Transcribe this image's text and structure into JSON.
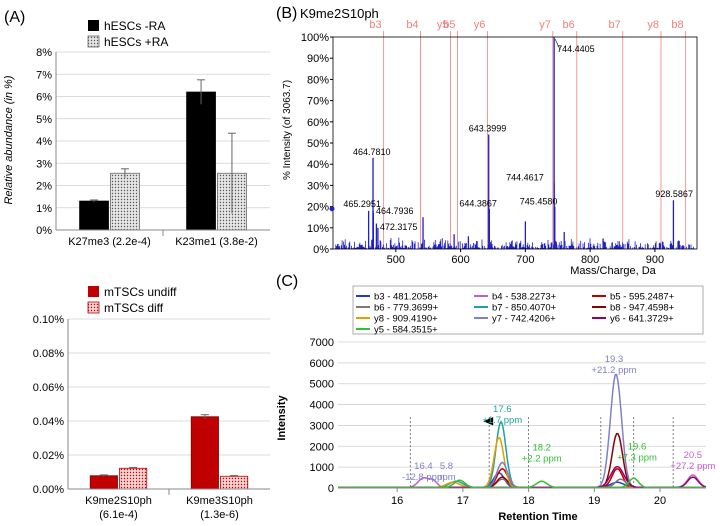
{
  "panels": {
    "a": "(A)",
    "b": "(B)",
    "c": "(C)"
  },
  "colors": {
    "black": "#000000",
    "dotted_gray": "#c8c8c8",
    "red": "#c00000",
    "pink": "#f4a6a6",
    "blue": "#1f1fcc",
    "salmon": "#f08080",
    "gridline": "#d0d0d0"
  },
  "chart_data": [
    {
      "id": "a-top",
      "type": "bar",
      "ylabel": "Relative abundance (in %)",
      "ylim": [
        0,
        8
      ],
      "yticks": [
        "0%",
        "1%",
        "2%",
        "3%",
        "4%",
        "5%",
        "6%",
        "7%",
        "8%"
      ],
      "categories": [
        "K27me3 (2.2e-4)",
        "K23me1 (3.8e-2)"
      ],
      "series": [
        {
          "name": "hESCs -RA",
          "values": [
            1.3,
            6.2
          ],
          "errors": [
            0.05,
            0.55
          ]
        },
        {
          "name": "hESCs +RA",
          "values": [
            2.55,
            2.55
          ],
          "errors": [
            0.2,
            1.8
          ]
        }
      ],
      "legend": "top-left"
    },
    {
      "id": "a-bottom",
      "type": "bar",
      "ylim": [
        0,
        0.1
      ],
      "yticks": [
        "0.00%",
        "0.02%",
        "0.04%",
        "0.06%",
        "0.08%",
        "0.10%"
      ],
      "categories": [
        [
          "K9me2S10ph",
          "(6.1e-4)"
        ],
        [
          "K9me3S10ph",
          "(1.3e-6)"
        ]
      ],
      "series": [
        {
          "name": "mTSCs undiff",
          "values": [
            0.0078,
            0.0425
          ],
          "errors": [
            0.0005,
            0.0012
          ]
        },
        {
          "name": "mTSCs diff",
          "values": [
            0.0122,
            0.0075
          ],
          "errors": [
            0.0005,
            0.0004
          ]
        }
      ],
      "legend": "top-left"
    },
    {
      "id": "b",
      "type": "line",
      "title": "K9me2S10ph",
      "xlabel": "Mass/Charge, Da",
      "ylabel": "% Intensity (of 3063.7)",
      "xlim": [
        403,
        965
      ],
      "ylim": [
        0,
        100
      ],
      "xticks": [
        "500",
        "600",
        "700",
        "800",
        "900"
      ],
      "yticks": [
        "0%",
        "10%",
        "20%",
        "30%",
        "40%",
        "50%",
        "60%",
        "70%",
        "80%",
        "90%",
        "100%"
      ],
      "fragment_labels": [
        {
          "label": "b3",
          "mz": 481.2
        },
        {
          "label": "b4",
          "mz": 538.2
        },
        {
          "label": "y5",
          "mz": 584.4
        },
        {
          "label": "b5",
          "mz": 595.2
        },
        {
          "label": "y6",
          "mz": 641.4
        },
        {
          "label": "y7",
          "mz": 742.4
        },
        {
          "label": "b6",
          "mz": 779.4
        },
        {
          "label": "b7",
          "mz": 850.4
        },
        {
          "label": "y8",
          "mz": 909.4
        },
        {
          "label": "b8",
          "mz": 947.5
        }
      ],
      "peaks": [
        {
          "mz": 464.781,
          "i": 43,
          "label": "464.7810"
        },
        {
          "mz": 465.2951,
          "i": 17,
          "label": "465.2951"
        },
        {
          "mz": 464.7936,
          "i": 18,
          "label": "464.7936"
        },
        {
          "mz": 472.3175,
          "i": 10,
          "label": "472.3175"
        },
        {
          "mz": 643.3999,
          "i": 54,
          "label": "643.3999"
        },
        {
          "mz": 644.3867,
          "i": 19,
          "label": "644.3867"
        },
        {
          "mz": 744.4405,
          "i": 100,
          "label": "744.4405"
        },
        {
          "mz": 744.4617,
          "i": 31,
          "label": "744.4617"
        },
        {
          "mz": 745.458,
          "i": 20,
          "label": "745.4580"
        },
        {
          "mz": 928.5867,
          "i": 23,
          "label": "928.5867"
        },
        {
          "mz": 458,
          "i": 18
        },
        {
          "mz": 470,
          "i": 12
        },
        {
          "mz": 476,
          "i": 4
        },
        {
          "mz": 542,
          "i": 15
        },
        {
          "mz": 590,
          "i": 7
        },
        {
          "mz": 612,
          "i": 6
        },
        {
          "mz": 700,
          "i": 13
        },
        {
          "mz": 760,
          "i": 8
        },
        {
          "mz": 820,
          "i": 5
        }
      ]
    },
    {
      "id": "c",
      "type": "line",
      "xlabel": "Retention Time",
      "ylabel": "Intensity",
      "xlim": [
        15.1,
        20.7
      ],
      "ylim": [
        0,
        7000
      ],
      "xticks": [
        "16",
        "17",
        "18",
        "19",
        "20"
      ],
      "yticks": [
        "0",
        "1000",
        "2000",
        "3000",
        "4000",
        "5000",
        "6000",
        "7000"
      ],
      "legend": "top",
      "series": [
        {
          "name": "b3 - 481.2058+",
          "color": "#1f3fbf",
          "peaks": [
            [
              17.55,
              700,
              0.08
            ],
            [
              19.35,
              250,
              0.1
            ]
          ]
        },
        {
          "name": "b4 - 538.2273+",
          "color": "#c060d0",
          "peaks": [
            [
              16.4,
              450,
              0.08
            ],
            [
              16.55,
              300,
              0.06
            ],
            [
              20.5,
              600,
              0.08
            ]
          ]
        },
        {
          "name": "b5 - 595.2487+",
          "color": "#c00000",
          "peaks": [
            [
              17.6,
              900,
              0.08
            ],
            [
              19.35,
              900,
              0.08
            ]
          ]
        },
        {
          "name": "b6 - 779.3699+",
          "color": "#7a7a7a",
          "peaks": [
            [
              17.6,
              400,
              0.08
            ],
            [
              19.4,
              400,
              0.08
            ]
          ]
        },
        {
          "name": "b7 - 850.4070+",
          "color": "#20a0a0",
          "peaks": [
            [
              17.58,
              3150,
              0.075
            ],
            [
              16.9,
              300,
              0.1
            ]
          ]
        },
        {
          "name": "b8 - 947.4598+",
          "color": "#8b0000",
          "peaks": [
            [
              19.35,
              2600,
              0.08
            ],
            [
              17.6,
              500,
              0.08
            ]
          ]
        },
        {
          "name": "y8 - 909.4190+",
          "color": "#e0a000",
          "peaks": [
            [
              17.55,
              2400,
              0.075
            ],
            [
              16.85,
              250,
              0.1
            ]
          ]
        },
        {
          "name": "y7 - 742.4206+",
          "color": "#8080c8",
          "peaks": [
            [
              19.33,
              5450,
              0.085
            ],
            [
              17.6,
              1200,
              0.08
            ]
          ]
        },
        {
          "name": "y6 - 641.3729+",
          "color": "#900070",
          "peaks": [
            [
              19.35,
              1000,
              0.1
            ],
            [
              20.5,
              500,
              0.08
            ]
          ]
        },
        {
          "name": "y5 - 584.3515+",
          "color": "#30c030",
          "peaks": [
            [
              18.2,
              300,
              0.08
            ],
            [
              19.6,
              450,
              0.07
            ],
            [
              16.95,
              350,
              0.08
            ]
          ]
        }
      ],
      "annotations": [
        {
          "x": 16.4,
          "y": 900,
          "lines": [
            "16.4",
            "-12.8 ppm"
          ],
          "color": "#8080c8"
        },
        {
          "x": 16.75,
          "y": 900,
          "lines": [
            "5.8",
            "ppm"
          ],
          "color": "#8080c8"
        },
        {
          "x": 17.6,
          "y": 3650,
          "lines": [
            "17.6",
            "+1.7 ppm"
          ],
          "color": "#20a0a0"
        },
        {
          "x": 18.2,
          "y": 1800,
          "lines": [
            "18.2",
            "+2.2 ppm"
          ],
          "color": "#30c030"
        },
        {
          "x": 19.3,
          "y": 6050,
          "lines": [
            "19.3",
            "+21.2 ppm"
          ],
          "color": "#8080c8"
        },
        {
          "x": 19.65,
          "y": 1850,
          "lines": [
            "19.6",
            "+7.3 ppm"
          ],
          "color": "#30c030"
        },
        {
          "x": 20.5,
          "y": 1450,
          "lines": [
            "20.5",
            "+27.2 ppm"
          ],
          "color": "#c060d0"
        }
      ],
      "markers": [
        16.2,
        17.4,
        18.0,
        19.1,
        19.6,
        20.2
      ]
    }
  ]
}
